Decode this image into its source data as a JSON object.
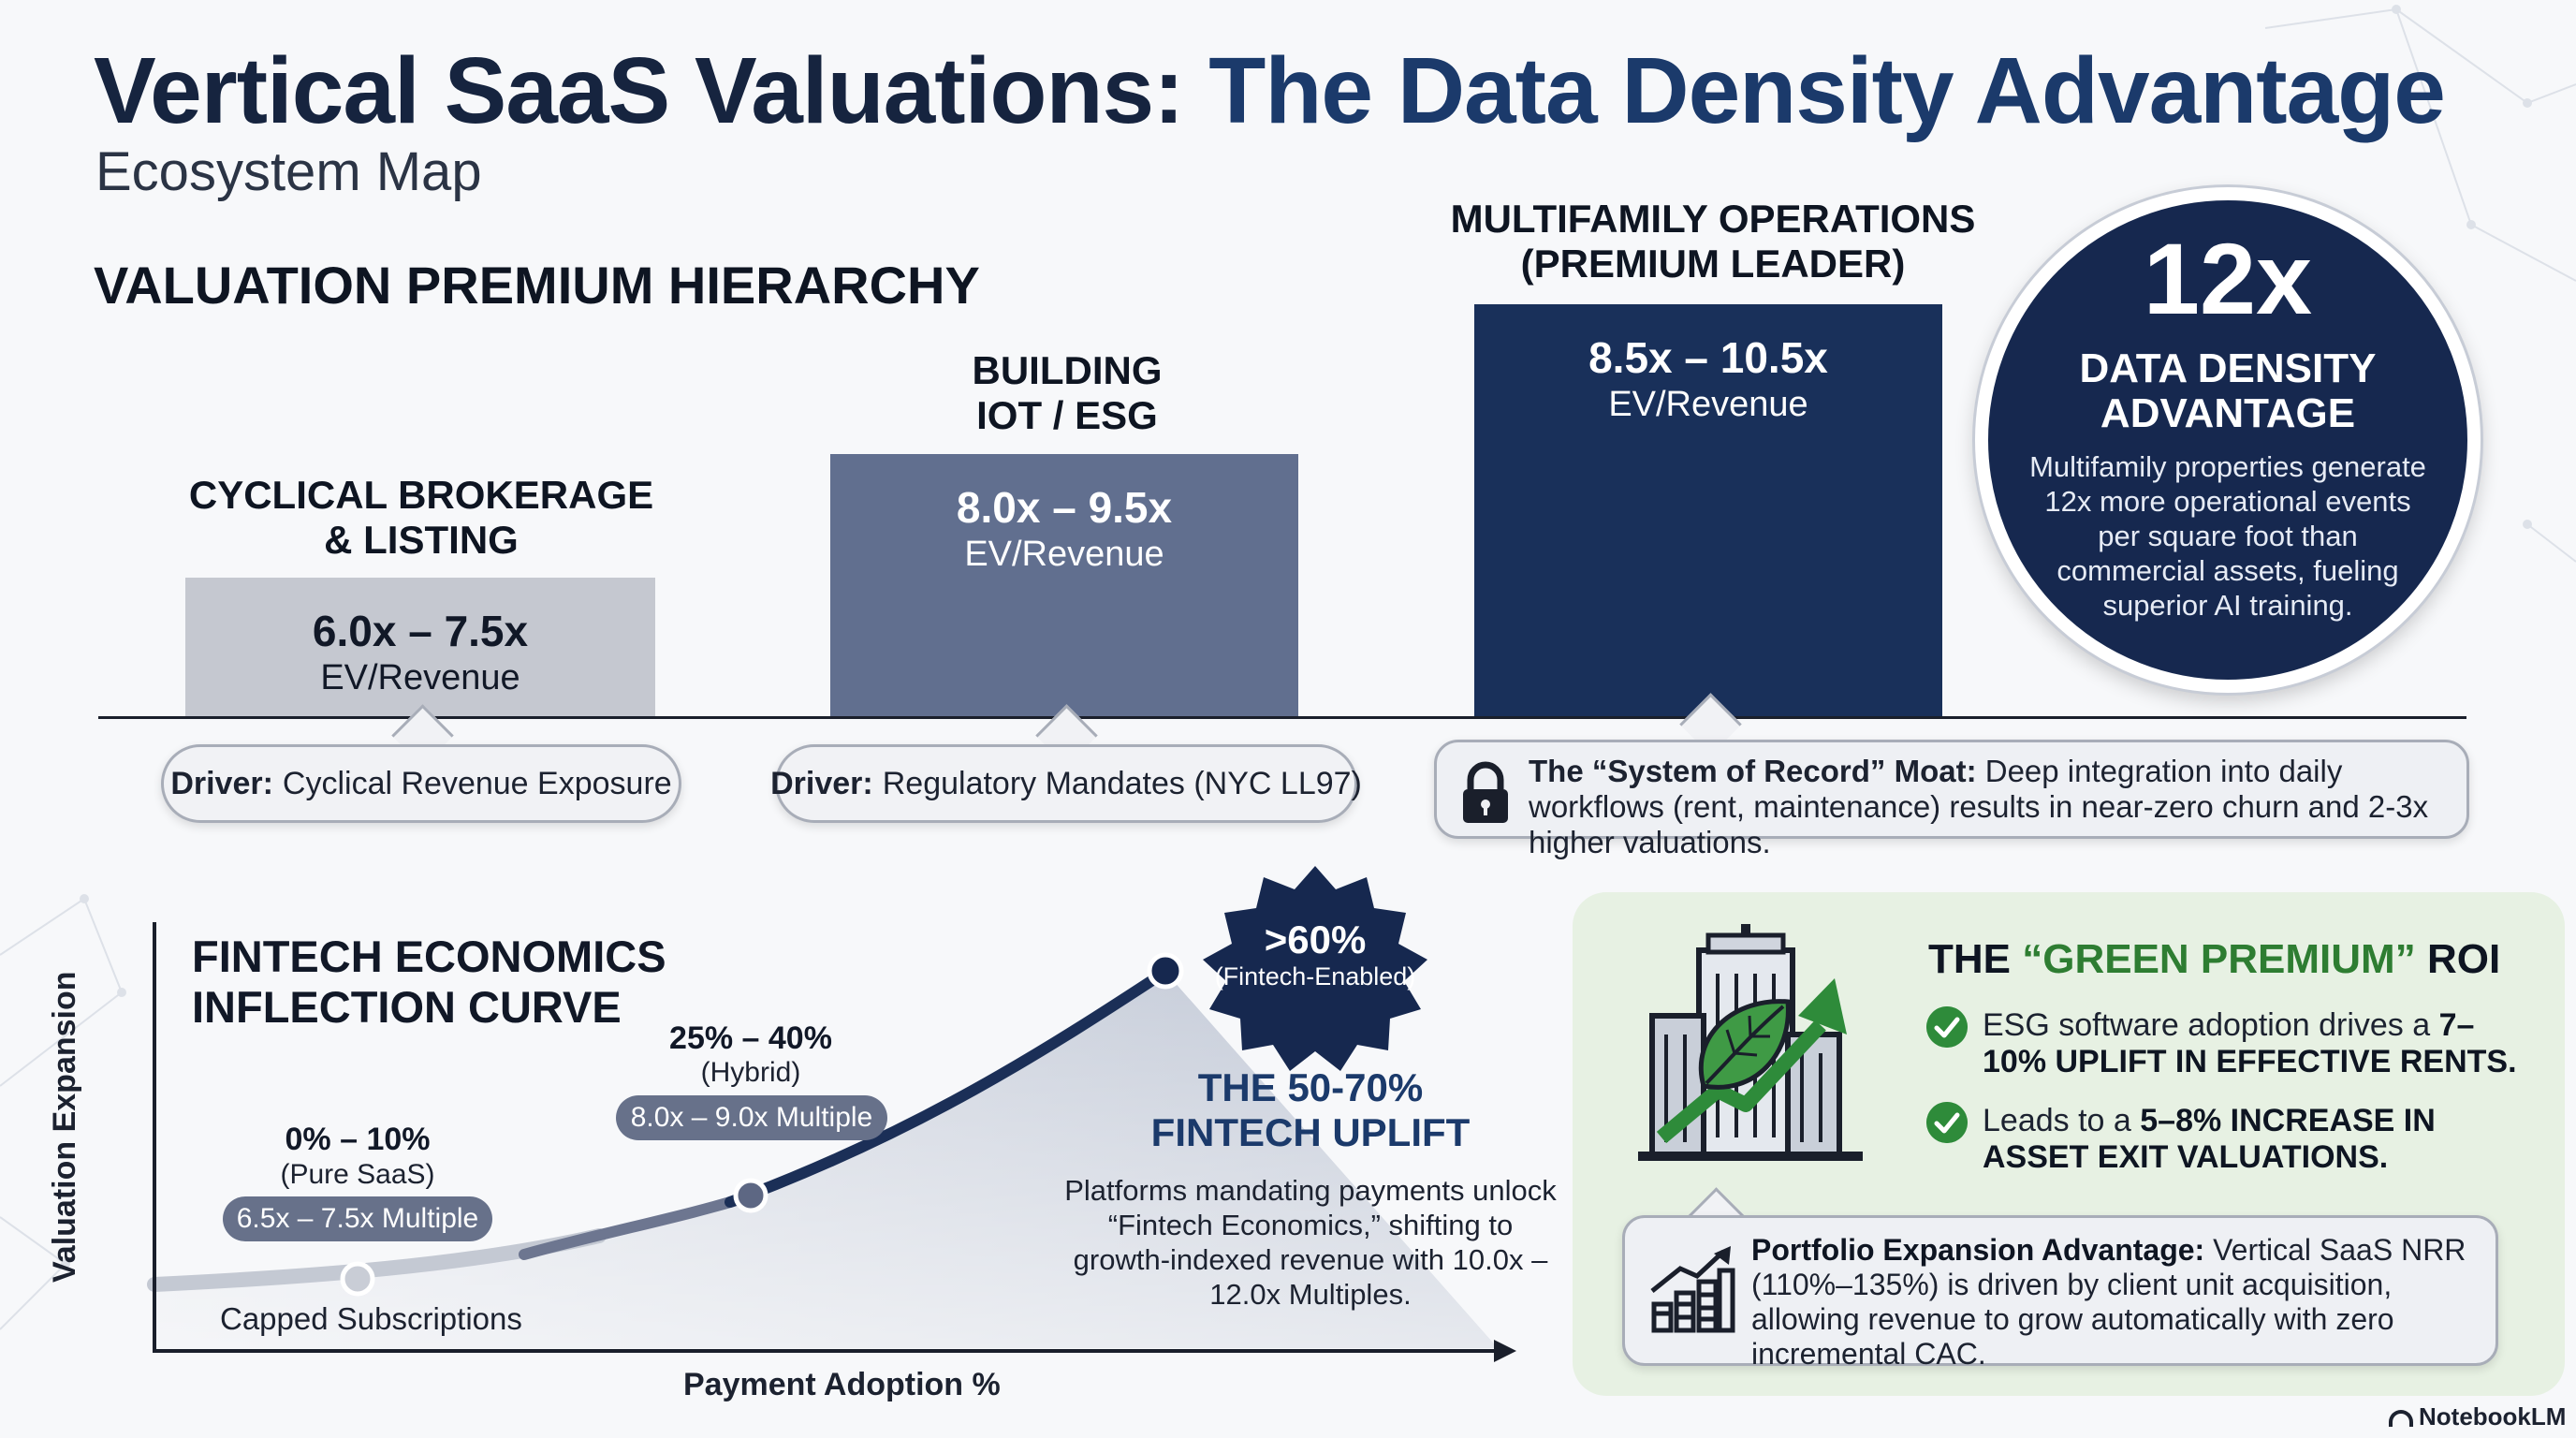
{
  "title": {
    "part1": "Vertical SaaS Valuations:",
    "part2": "The Data Density Advantage"
  },
  "subtitle": "Ecosystem Map",
  "hierarchy": {
    "heading": "VALUATION PREMIUM HIERARCHY",
    "tiers": [
      {
        "label": "CYCLICAL BROKERAGE\n& LISTING",
        "range": "6.0x – 7.5x",
        "metric": "EV/Revenue",
        "driver_label": "Driver:",
        "driver_text": "Cyclical Revenue Exposure"
      },
      {
        "label": "BUILDING\nIOT / ESG",
        "range": "8.0x – 9.5x",
        "metric": "EV/Revenue",
        "driver_label": "Driver:",
        "driver_text": "Regulatory Mandates (NYC LL97)"
      },
      {
        "label": "MULTIFAMILY OPERATIONS\n(PREMIUM LEADER)",
        "range": "8.5x – 10.5x",
        "metric": "EV/Revenue",
        "moat_label": "The “System of Record” Moat:",
        "moat_text": "Deep integration into daily workflows (rent, maintenance) results in near-zero churn and 2-3x higher valuations."
      }
    ]
  },
  "data_density": {
    "value": "12x",
    "title": "DATA DENSITY\nADVANTAGE",
    "description": "Multifamily properties generate 12x more operational events per square foot than commercial assets, fueling superior AI training."
  },
  "fintech": {
    "title": "FINTECH ECONOMICS\nINFLECTION CURVE",
    "y_axis": "Valuation Expansion",
    "x_axis": "Payment Adoption %",
    "baseline_label": "Capped Subscriptions",
    "stages": [
      {
        "pct": "0% – 10%",
        "type": "(Pure SaaS)",
        "multiple": "6.5x – 7.5x Multiple"
      },
      {
        "pct": "25% – 40%",
        "type": "(Hybrid)",
        "multiple": "8.0x – 9.0x Multiple"
      },
      {
        "pct": ">60%",
        "type": "(Fintech-Enabled)"
      }
    ],
    "uplift_title": "THE 50-70%\nFINTECH UPLIFT",
    "uplift_desc": "Platforms mandating payments unlock “Fintech Economics,” shifting to growth-indexed revenue with 10.0x – 12.0x Multiples."
  },
  "green": {
    "title_prefix": "THE",
    "title_highlight": "“GREEN PREMIUM”",
    "title_suffix": "ROI",
    "items": [
      {
        "text": "ESG software adoption drives a",
        "bold": "7–10% UPLIFT IN EFFECTIVE RENTS."
      },
      {
        "text": "Leads to a",
        "bold": "5–8% INCREASE IN ASSET EXIT VALUATIONS."
      }
    ],
    "portfolio_label": "Portfolio Expansion Advantage:",
    "portfolio_text": "Vertical SaaS NRR (110%–135%) is driven by client unit acquisition, allowing revenue to grow automatically with zero incremental CAC."
  },
  "watermark": "NotebookLM",
  "colors": {
    "navy": "#16284f",
    "slate": "#616f8f",
    "light_gray": "#c5c8d0",
    "green": "#2e8b3a",
    "accent_blue": "#1b3a6b"
  }
}
